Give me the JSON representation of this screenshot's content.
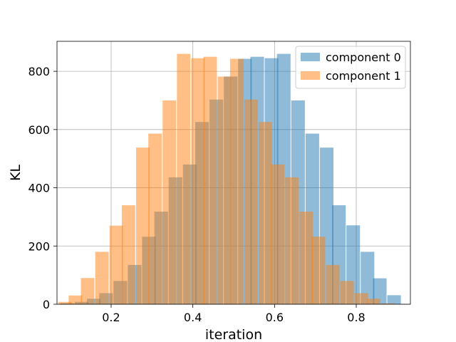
{
  "chart_data": {
    "type": "bar",
    "xlabel": "iteration",
    "ylabel": "KL",
    "xlim": [
      0.0675,
      0.9325
    ],
    "ylim": [
      0,
      903
    ],
    "xticks": [
      0.2,
      0.4,
      0.6,
      0.8
    ],
    "yticks": [
      0,
      200,
      400,
      600,
      800
    ],
    "grid": true,
    "legend_position": "top-right",
    "series": [
      {
        "name": "component 0",
        "color": "#1f77b4",
        "opacity": 0.5,
        "bins": [
          0.0925,
          0.1275,
          0.1575,
          0.1875,
          0.2225,
          0.2575,
          0.2925,
          0.3225,
          0.3575,
          0.3925,
          0.4225,
          0.4575,
          0.4925,
          0.5275,
          0.5575,
          0.5925,
          0.6225,
          0.6575,
          0.6925,
          0.7275,
          0.7575,
          0.7925,
          0.8275,
          0.8575,
          0.8925
        ],
        "values": [
          3,
          8,
          19,
          38,
          80,
          135,
          232,
          318,
          436,
          480,
          626,
          703,
          782,
          843,
          850,
          845,
          860,
          700,
          586,
          538,
          340,
          271,
          180,
          89,
          31
        ]
      },
      {
        "name": "component 1",
        "color": "#ff7f0e",
        "opacity": 0.5,
        "bins": [
          0.0875,
          0.1125,
          0.1425,
          0.1775,
          0.2125,
          0.2425,
          0.2775,
          0.3075,
          0.3425,
          0.3775,
          0.4125,
          0.4425,
          0.4775,
          0.5075,
          0.5425,
          0.5775,
          0.6075,
          0.6425,
          0.6775,
          0.7075,
          0.7425,
          0.7775,
          0.8125,
          0.8425,
          0.8775
        ],
        "values": [
          8,
          30,
          90,
          180,
          270,
          340,
          538,
          586,
          700,
          860,
          845,
          850,
          782,
          843,
          703,
          626,
          480,
          436,
          318,
          232,
          135,
          80,
          38,
          19,
          3
        ]
      }
    ]
  }
}
